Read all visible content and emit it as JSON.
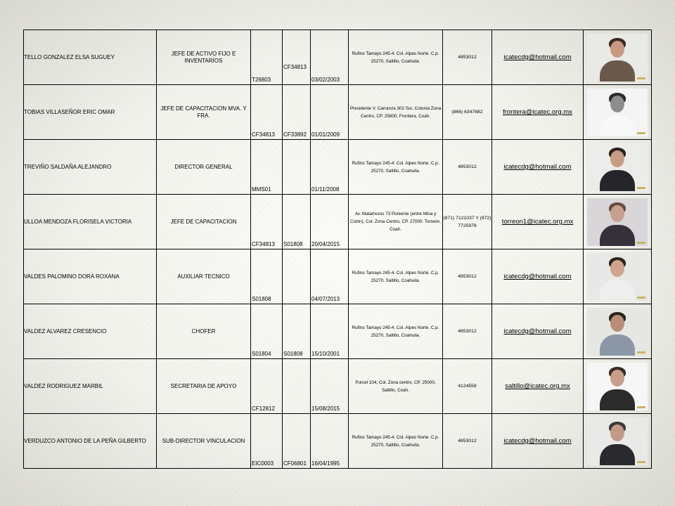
{
  "rows": [
    {
      "name": "TELLO GONZALEZ ELSA SUGUEY",
      "role": "JEFE DE ACTIVO FIJO E INVENTARIOS",
      "code1": "T26803",
      "code2_top": "CF34813",
      "code2_bottom": "",
      "date": "03/02/2003",
      "address": "Rufino Tamayo 245-4. Col. Alpes Norte. C.p. 25270, Saltillo, Coahuila.",
      "phone": "4853012",
      "email": "icatecdg@hotmail.com",
      "photo": {
        "bg": "#e9e9e6",
        "skin": "#c99a82",
        "hair": "#3b2a22",
        "clothes": "#6b5a4c",
        "style": "color"
      }
    },
    {
      "name": "TOBIAS VILLASEÑOR ERIC OMAR",
      "role": "JEFE DE CAPACITACION MVA. Y FRA.",
      "code1": "CF34813",
      "code2_top": "",
      "code2_bottom": "CF33892",
      "date": "01/01/2009",
      "address": "Presidente V. Carranza 302 Sur, Colonia Zona Centro, CP. 25600, Frontera, Coah.",
      "phone": "(866) 6347882",
      "email": "frontera@icatec.org.mx",
      "photo": {
        "bg": "#f4f4f4",
        "skin": "#8d8d8d",
        "hair": "#2b2b2b",
        "clothes": "#f8f8f8",
        "style": "gray"
      }
    },
    {
      "name": "TREVIÑO SALDAÑA ALEJANDRO",
      "role": "DIRECTOR GENERAL",
      "code1": "MMS01",
      "code2_top": "",
      "code2_bottom": "",
      "date": "01/11/2008",
      "address": "Rufino Tamayo 245-4. Col. Alpes Norte. C.p. 25270, Saltillo, Coahuila.",
      "phone": "4853012",
      "email": "icatecdg@hotmail.com",
      "photo": {
        "bg": "#ececea",
        "skin": "#c79c84",
        "hair": "#2a1f1a",
        "clothes": "#26262a",
        "style": "color"
      }
    },
    {
      "name": "ULLOA MENDOZA FLORISELA VICTORIA",
      "role": "JEFE DE CAPACITACION",
      "code1": "CF34813",
      "code2_top": "",
      "code2_bottom": "S01808",
      "date": "20/04/2015",
      "address": "Av. Matamoros 73 Poniente (entre Mina y Colón), Col. Zona Centro, CP. 27000. Torreón, Coah.",
      "phone": "(871) 7121037 Y (872) 7725978",
      "email": "torreon1@icatec.org.mx",
      "photo": {
        "bg": "#d8d6d9",
        "skin": "#c8a08e",
        "hair": "#6a4a3b",
        "clothes": "#35303a",
        "style": "color"
      }
    },
    {
      "name": "VALDES PALOMINO DORA ROXANA",
      "role": "AUXILIAR TECNICO",
      "code1": "S01808",
      "code2_top": "",
      "code2_bottom": "",
      "date": "04/07/2013",
      "address": "Rufino Tamayo 245-4. Col. Alpes Norte. C.p. 25270, Saltillo, Coahuila.",
      "phone": "4853012",
      "email": "icatecdg@hotmail.com",
      "photo": {
        "bg": "#e8e8e6",
        "skin": "#d0a48c",
        "hair": "#2e221c",
        "clothes": "#eeeeee",
        "style": "color"
      }
    },
    {
      "name": "VALDEZ ALVAREZ CRESENCIO",
      "role": "CHOFER",
      "code1": "S01804",
      "code2_top": "",
      "code2_bottom": "S01808",
      "date": "15/10/2001",
      "address": "Rufino Tamayo 245-4. Col. Alpes Norte. C.p. 25270, Saltillo, Coahuila.",
      "phone": "4853012",
      "email": "icatecdg@hotmail.com",
      "photo": {
        "bg": "#e6e6e3",
        "skin": "#b98e74",
        "hair": "#2a221c",
        "clothes": "#8b96a6",
        "style": "color"
      }
    },
    {
      "name": "VALDEZ RODRIGUEZ MARBIL",
      "role": "SECRETARIA DE APOYO",
      "code1": "CF12812",
      "code2_top": "",
      "code2_bottom": "",
      "date": "15/08/2015",
      "address": "Purcel 104, Col. Zona centro, CP. 25000, Saltillo, Coah.",
      "phone": "4124558",
      "email": "saltillo@icatec.org.mx",
      "photo": {
        "bg": "#f6f6f6",
        "skin": "#c79e88",
        "hair": "#3a2a24",
        "clothes": "#2b2b2b",
        "style": "color"
      }
    },
    {
      "name": "VERDUZCO ANTONIO DE LA PEÑA GILBERTO",
      "role": "SUB-DIRECTOR VINCULACION",
      "code1": "EIC0003",
      "code2_top": "",
      "code2_bottom": "CF06801",
      "date": "16/04/1995",
      "address": "Rufino Tamayo 245-4. Col. Alpes Norte. C.p. 25270, Saltillo, Coahuila.",
      "phone": "4853012",
      "email": "icatecdg@hotmail.com",
      "photo": {
        "bg": "#e9e9e7",
        "skin": "#c29b86",
        "hair": "#3a3a3a",
        "clothes": "#2a2a2e",
        "style": "color"
      }
    }
  ]
}
